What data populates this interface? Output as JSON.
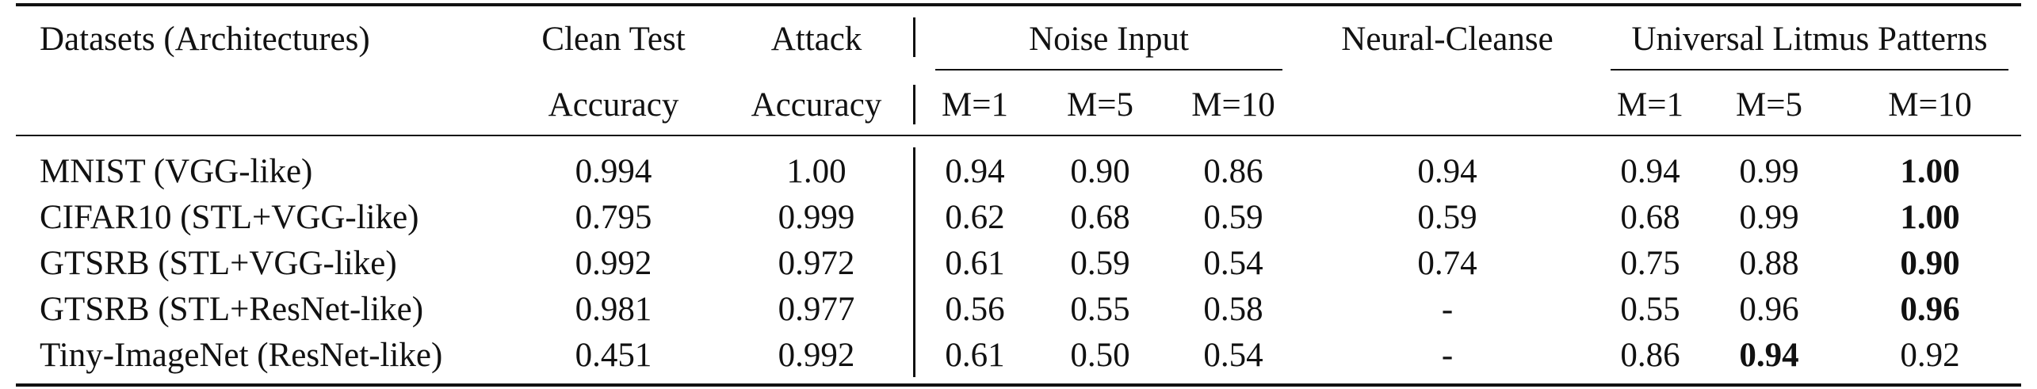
{
  "header": {
    "datasets_label": "Datasets (Architectures)",
    "clean_test": "Clean Test",
    "clean_accuracy": "Accuracy",
    "attack": "Attack",
    "attack_accuracy": "Accuracy",
    "noise_input": "Noise Input",
    "neural_cleanse": "Neural-Cleanse",
    "ulp": "Universal Litmus Patterns",
    "noise_m": [
      "M=1",
      "M=5",
      "M=10"
    ],
    "ulp_m": [
      "M=1",
      "M=5",
      "M=10"
    ]
  },
  "rows": [
    {
      "dataset": "MNIST (VGG-like)",
      "clean": "0.994",
      "attack": "1.00",
      "noise": [
        "0.94",
        "0.90",
        "0.86"
      ],
      "nc": "0.94",
      "ulp": [
        "0.94",
        "0.99",
        "1.00"
      ],
      "bold": [
        false,
        false,
        true
      ]
    },
    {
      "dataset": "CIFAR10 (STL+VGG-like)",
      "clean": "0.795",
      "attack": "0.999",
      "noise": [
        "0.62",
        "0.68",
        "0.59"
      ],
      "nc": "0.59",
      "ulp": [
        "0.68",
        "0.99",
        "1.00"
      ],
      "bold": [
        false,
        false,
        true
      ]
    },
    {
      "dataset": "GTSRB (STL+VGG-like)",
      "clean": "0.992",
      "attack": "0.972",
      "noise": [
        "0.61",
        "0.59",
        "0.54"
      ],
      "nc": "0.74",
      "ulp": [
        "0.75",
        "0.88",
        "0.90"
      ],
      "bold": [
        false,
        false,
        true
      ]
    },
    {
      "dataset": "GTSRB (STL+ResNet-like)",
      "clean": "0.981",
      "attack": "0.977",
      "noise": [
        "0.56",
        "0.55",
        "0.58"
      ],
      "nc": "-",
      "ulp": [
        "0.55",
        "0.96",
        "0.96"
      ],
      "bold": [
        false,
        false,
        true
      ]
    },
    {
      "dataset": "Tiny-ImageNet (ResNet-like)",
      "clean": "0.451",
      "attack": "0.992",
      "noise": [
        "0.61",
        "0.50",
        "0.54"
      ],
      "nc": "-",
      "ulp": [
        "0.86",
        "0.94",
        "0.92"
      ],
      "bold": [
        false,
        true,
        false
      ]
    }
  ]
}
